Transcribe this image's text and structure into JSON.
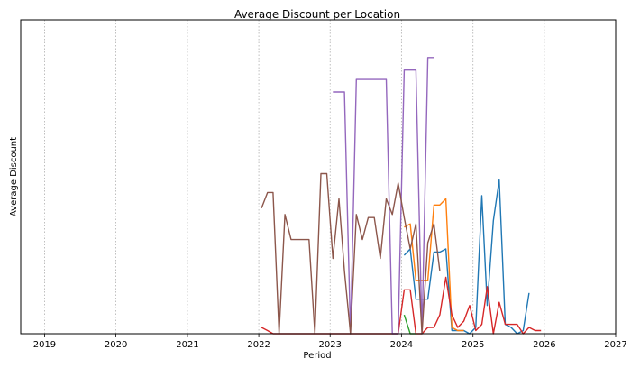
{
  "chart_data": {
    "type": "line",
    "title": "Average Discount per Location",
    "xlabel": "Period",
    "ylabel": "Average Discount",
    "x_axis": {
      "kind": "date",
      "ticks": [
        "2019",
        "2020",
        "2021",
        "2022",
        "2023",
        "2024",
        "2025",
        "2026",
        "2027"
      ],
      "xlim": [
        "2018-09-01",
        "2027-01-01"
      ]
    },
    "y_axis": {
      "tick_labels": [],
      "ylim": [
        0,
        100
      ]
    },
    "grid": {
      "x": true,
      "y": false,
      "style": "dotted"
    },
    "series": [
      {
        "color": "#1f77b4",
        "points": [
          [
            "2024-01-15",
            25
          ],
          [
            "2024-02-15",
            27
          ],
          [
            "2024-03-15",
            11
          ],
          [
            "2024-04-15",
            11
          ],
          [
            "2024-05-15",
            11
          ],
          [
            "2024-06-15",
            26
          ],
          [
            "2024-07-15",
            26
          ],
          [
            "2024-08-15",
            27
          ],
          [
            "2024-09-15",
            1
          ],
          [
            "2024-10-15",
            1
          ],
          [
            "2024-11-15",
            1
          ],
          [
            "2024-12-15",
            0
          ],
          [
            "2025-01-15",
            2
          ],
          [
            "2025-02-15",
            44
          ],
          [
            "2025-03-15",
            9
          ],
          [
            "2025-04-15",
            36
          ],
          [
            "2025-05-15",
            49
          ],
          [
            "2025-06-15",
            3
          ],
          [
            "2025-07-15",
            2
          ],
          [
            "2025-08-15",
            0
          ],
          [
            "2025-09-15",
            1
          ],
          [
            "2025-10-15",
            13
          ]
        ]
      },
      {
        "color": "#ff7f0e",
        "points": [
          [
            "2024-01-15",
            34
          ],
          [
            "2024-02-15",
            35
          ],
          [
            "2024-03-15",
            17
          ],
          [
            "2024-04-15",
            17
          ],
          [
            "2024-05-15",
            17
          ],
          [
            "2024-06-15",
            41
          ],
          [
            "2024-07-15",
            41
          ],
          [
            "2024-08-15",
            43
          ],
          [
            "2024-09-15",
            2
          ],
          [
            "2024-10-15",
            1
          ],
          [
            "2024-11-15",
            1
          ]
        ]
      },
      {
        "color": "#2ca02c",
        "points": [
          [
            "2024-01-15",
            6
          ],
          [
            "2024-02-15",
            0
          ],
          [
            "2024-03-15",
            0
          ]
        ]
      },
      {
        "color": "#d62728",
        "points": [
          [
            "2022-01-15",
            2
          ],
          [
            "2022-02-15",
            1
          ],
          [
            "2022-03-15",
            0
          ],
          [
            "2022-04-15",
            0
          ],
          [
            "2022-05-15",
            0
          ],
          [
            "2022-06-15",
            0
          ],
          [
            "2022-07-15",
            0
          ],
          [
            "2022-08-15",
            0
          ],
          [
            "2022-09-15",
            0
          ],
          [
            "2022-10-15",
            0
          ],
          [
            "2022-11-15",
            0
          ],
          [
            "2022-12-15",
            0
          ],
          [
            "2023-01-15",
            0
          ],
          [
            "2023-02-15",
            0
          ],
          [
            "2023-03-15",
            0
          ],
          [
            "2023-04-15",
            0
          ],
          [
            "2023-05-15",
            0
          ],
          [
            "2023-06-15",
            0
          ],
          [
            "2023-07-15",
            0
          ],
          [
            "2023-08-15",
            0
          ],
          [
            "2023-09-15",
            0
          ],
          [
            "2023-10-15",
            0
          ],
          [
            "2023-11-15",
            0
          ],
          [
            "2023-12-15",
            0
          ],
          [
            "2024-01-15",
            14
          ],
          [
            "2024-02-15",
            14
          ],
          [
            "2024-03-15",
            0
          ],
          [
            "2024-04-15",
            0
          ],
          [
            "2024-05-15",
            2
          ],
          [
            "2024-06-15",
            2
          ],
          [
            "2024-07-15",
            6
          ],
          [
            "2024-08-15",
            18
          ],
          [
            "2024-09-15",
            6
          ],
          [
            "2024-10-15",
            2
          ],
          [
            "2024-11-15",
            4
          ],
          [
            "2024-12-15",
            9
          ],
          [
            "2025-01-15",
            1
          ],
          [
            "2025-02-15",
            3
          ],
          [
            "2025-03-15",
            15
          ],
          [
            "2025-04-15",
            0
          ],
          [
            "2025-05-15",
            10
          ],
          [
            "2025-06-15",
            3
          ],
          [
            "2025-07-15",
            3
          ],
          [
            "2025-08-15",
            3
          ],
          [
            "2025-09-15",
            0
          ],
          [
            "2025-10-15",
            2
          ],
          [
            "2025-11-15",
            1
          ],
          [
            "2025-12-15",
            1
          ]
        ]
      },
      {
        "color": "#9467bd",
        "points": [
          [
            "2023-01-15",
            77
          ],
          [
            "2023-02-15",
            77
          ],
          [
            "2023-03-15",
            77
          ],
          [
            "2023-04-15",
            0
          ],
          [
            "2023-05-15",
            81
          ],
          [
            "2023-06-15",
            81
          ],
          [
            "2023-07-15",
            81
          ],
          [
            "2023-08-15",
            81
          ],
          [
            "2023-09-15",
            81
          ],
          [
            "2023-10-15",
            81
          ],
          [
            "2023-11-15",
            0
          ],
          [
            "2023-12-15",
            0
          ],
          [
            "2024-01-15",
            84
          ],
          [
            "2024-02-15",
            84
          ],
          [
            "2024-03-15",
            84
          ],
          [
            "2024-04-15",
            0
          ],
          [
            "2024-05-15",
            88
          ],
          [
            "2024-06-15",
            88
          ]
        ]
      },
      {
        "color": "#8c564b",
        "points": [
          [
            "2022-01-15",
            40
          ],
          [
            "2022-02-15",
            45
          ],
          [
            "2022-03-15",
            45
          ],
          [
            "2022-04-15",
            0
          ],
          [
            "2022-05-15",
            38
          ],
          [
            "2022-06-15",
            30
          ],
          [
            "2022-07-15",
            30
          ],
          [
            "2022-08-15",
            30
          ],
          [
            "2022-09-15",
            30
          ],
          [
            "2022-10-15",
            0
          ],
          [
            "2022-11-15",
            51
          ],
          [
            "2022-12-15",
            51
          ],
          [
            "2023-01-15",
            24
          ],
          [
            "2023-02-15",
            43
          ],
          [
            "2023-03-15",
            20
          ],
          [
            "2023-04-15",
            0
          ],
          [
            "2023-05-15",
            38
          ],
          [
            "2023-06-15",
            30
          ],
          [
            "2023-07-15",
            37
          ],
          [
            "2023-08-15",
            37
          ],
          [
            "2023-09-15",
            24
          ],
          [
            "2023-10-15",
            43
          ],
          [
            "2023-11-15",
            38
          ],
          [
            "2023-12-15",
            48
          ],
          [
            "2024-01-15",
            37
          ],
          [
            "2024-02-15",
            27
          ],
          [
            "2024-03-15",
            35
          ],
          [
            "2024-04-15",
            0
          ],
          [
            "2024-05-15",
            29
          ],
          [
            "2024-06-15",
            35
          ],
          [
            "2024-07-15",
            20
          ]
        ]
      }
    ]
  }
}
